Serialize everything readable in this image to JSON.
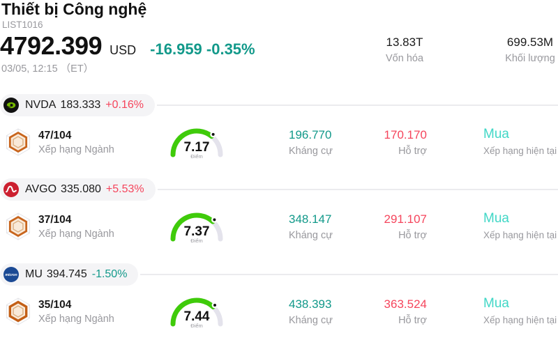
{
  "header": {
    "title": "Thiết bị Công nghệ",
    "list_id": "LIST1016",
    "price": "4792.399",
    "currency": "USD",
    "change": "-16.959 -0.35%",
    "change_color": "#12998a",
    "datetime": "03/05, 12:15 （ET）",
    "stats": [
      {
        "value": "13.83T",
        "label": "Vốn hóa"
      },
      {
        "value": "699.53M",
        "label": "Khối lượng"
      }
    ]
  },
  "labels": {
    "rank_industry": "Xếp hạng Ngành",
    "score": "Điểm",
    "resistance": "Kháng cự",
    "support": "Hỗ trợ",
    "current_rating": "Xếp hạng hiện tại"
  },
  "colors": {
    "up_red": "#f5455c",
    "down_teal": "#12998a",
    "rating_teal": "#40d7c6",
    "gauge_green": "#3fcb0a",
    "gauge_track": "#e4e3ec",
    "pill_bg": "#f4f4f6",
    "muted_text": "#98989d"
  },
  "rows": [
    {
      "ticker": "NVDA",
      "price": "183.333",
      "change": "+0.16%",
      "change_color": "#f5455c",
      "logo": "nvidia-logo",
      "rank": "47/104",
      "score": 7.17,
      "resistance": "196.770",
      "resistance_color": "#12998a",
      "support": "170.170",
      "support_color": "#f5455c",
      "rating": "Mua",
      "rating_color": "#40d7c6"
    },
    {
      "ticker": "AVGO",
      "price": "335.080",
      "change": "+5.53%",
      "change_color": "#f5455c",
      "logo": "broadcom-logo",
      "rank": "37/104",
      "score": 7.37,
      "resistance": "348.147",
      "resistance_color": "#12998a",
      "support": "291.107",
      "support_color": "#f5455c",
      "rating": "Mua",
      "rating_color": "#40d7c6"
    },
    {
      "ticker": "MU",
      "price": "394.745",
      "change": "-1.50%",
      "change_color": "#12998a",
      "logo": "micron-logo",
      "rank": "35/104",
      "score": 7.44,
      "resistance": "438.393",
      "resistance_color": "#12998a",
      "support": "363.524",
      "support_color": "#f5455c",
      "rating": "Mua",
      "rating_color": "#40d7c6"
    }
  ]
}
